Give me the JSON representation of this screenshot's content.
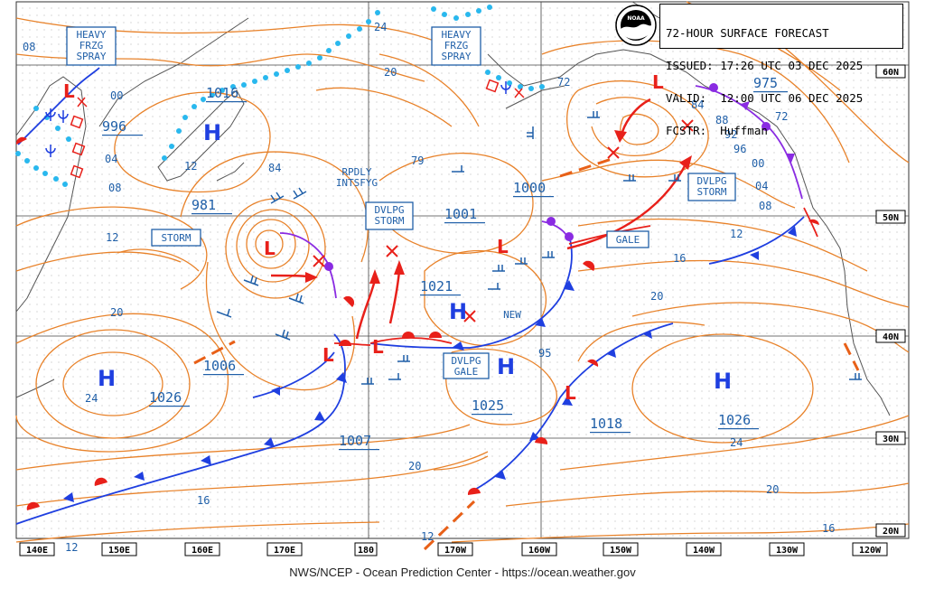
{
  "header": {
    "title": "72-HOUR SURFACE FORECAST",
    "issued": "ISSUED: 17:26 UTC 03 DEC 2025",
    "valid": "VALID:  12:00 UTC 06 DEC 2025",
    "forecaster": "FCSTR:  Huffman",
    "logo_text": "NOAA"
  },
  "footer": "NWS/NCEP - Ocean Prediction Center - https://ocean.weather.gov",
  "longitude_labels": [
    "140E",
    "150E",
    "160E",
    "170E",
    "180",
    "170W",
    "160W",
    "150W",
    "140W",
    "130W",
    "120W"
  ],
  "latitude_labels": [
    "60N",
    "50N",
    "40N",
    "30N",
    "20N"
  ],
  "warnings": {
    "heavy_frzg_spray_w": [
      "HEAVY",
      "FRZG",
      "SPRAY"
    ],
    "heavy_frzg_spray_c": [
      "HEAVY",
      "FRZG",
      "SPRAY"
    ],
    "storm": "STORM",
    "dvlpg_storm_c": [
      "DVLPG",
      "STORM"
    ],
    "dvlpg_storm_e": [
      "DVLPG",
      "STORM"
    ],
    "dvlpg_gale": [
      "DVLPG",
      "GALE"
    ],
    "gale": "GALE",
    "rpdly_intsfyg": [
      "RPDLY",
      "INTSFYG"
    ],
    "new": "NEW"
  },
  "pressure_centers": [
    {
      "type": "H",
      "value": "1016"
    },
    {
      "type": "L",
      "value": "996"
    },
    {
      "type": "L",
      "value": "981"
    },
    {
      "type": "H",
      "value": "1026"
    },
    {
      "type": "L",
      "value": "1006"
    },
    {
      "type": "L",
      "value": "1007"
    },
    {
      "type": "H",
      "value": "1021"
    },
    {
      "type": "L",
      "value": "1001"
    },
    {
      "type": "L",
      "value": "1000"
    },
    {
      "type": "H",
      "value": "1025"
    },
    {
      "type": "L",
      "value": "1018"
    },
    {
      "type": "H",
      "value": "1026"
    },
    {
      "type": "L",
      "value": "975"
    }
  ],
  "isobar_labels": [
    "08",
    "00",
    "04",
    "08",
    "12",
    "12",
    "20",
    "24",
    "24",
    "20",
    "84",
    "79",
    "72",
    "84",
    "88",
    "92",
    "96",
    "00",
    "04",
    "08",
    "72",
    "12",
    "16",
    "20",
    "95",
    "24",
    "20",
    "16",
    "20",
    "16",
    "12",
    "12"
  ],
  "colors": {
    "isobar": "#e8822a",
    "cold_front": "#1f3fe0",
    "warm_front": "#e8201a",
    "occluded": "#8a2be2",
    "ice": "#29b8ee",
    "label_box": "#1f5fa8",
    "grid": "#9a9a9a",
    "coast": "#555555"
  }
}
